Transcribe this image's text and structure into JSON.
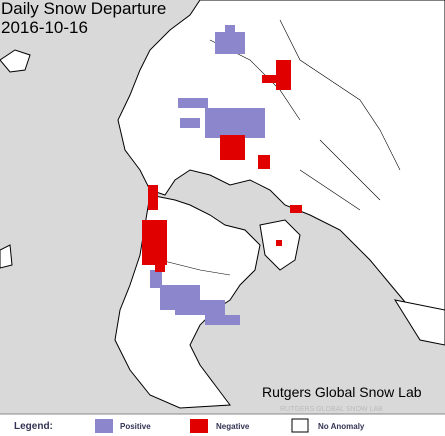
{
  "header": {
    "title": "Daily Snow Departure",
    "date": "2016-10-16"
  },
  "credit": "Rutgers Global Snow Lab",
  "watermark": "RUTGERS GLOBAL SNOW LAB",
  "legend": {
    "label": "Legend:",
    "items": [
      "Positive",
      "Negative",
      "No Anomaly"
    ]
  }
}
